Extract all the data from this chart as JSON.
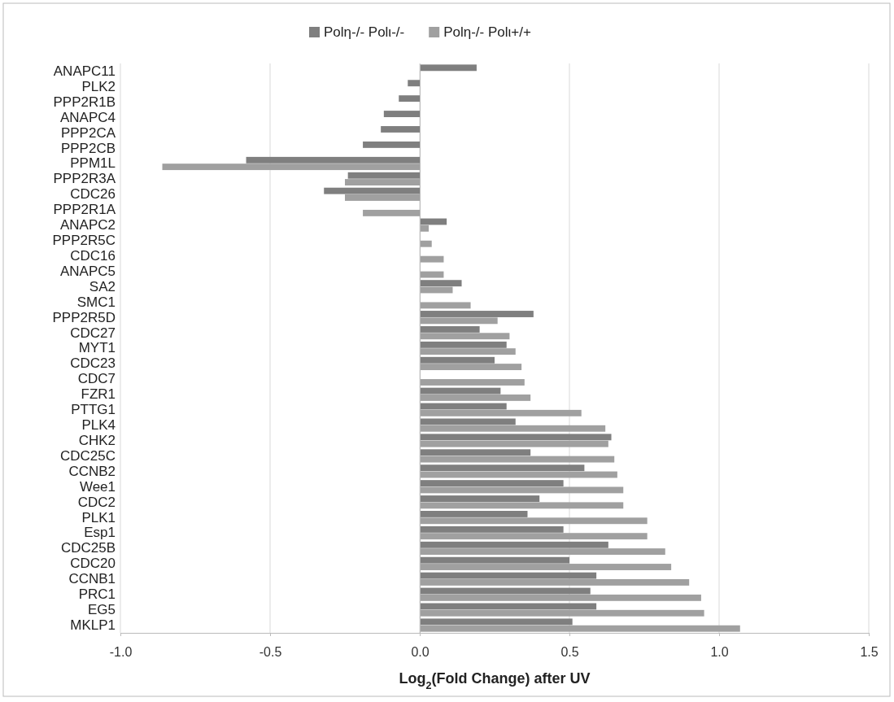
{
  "chart_data": {
    "type": "bar",
    "orientation": "horizontal",
    "xlabel": "Log$_{2}$(Fold Change) after UV",
    "categories": [
      "ANAPC11",
      "PLK2",
      "PPP2R1B",
      "ANAPC4",
      "PPP2CA",
      "PPP2CB",
      "PPM1L",
      "PPP2R3A",
      "CDC26",
      "PPP2R1A",
      "ANAPC2",
      "PPP2R5C",
      "CDC16",
      "ANAPC5",
      "SA2",
      "SMC1",
      "PPP2R5D",
      "CDC27",
      "MYT1",
      "CDC23",
      "CDC7",
      "FZR1",
      "PTTG1",
      "PLK4",
      "CHK2",
      "CDC25C",
      "CCNB2",
      "Wee1",
      "CDC2",
      "PLK1",
      "Esp1",
      "CDC25B",
      "CDC20",
      "CCNB1",
      "PRC1",
      "EG5",
      "MKLP1"
    ],
    "series": [
      {
        "name": "Polη-/- Polι-/-",
        "color": "#7f7f7f",
        "values": [
          0.19,
          -0.04,
          -0.07,
          -0.12,
          -0.13,
          -0.19,
          -0.58,
          -0.24,
          -0.32,
          null,
          0.09,
          null,
          null,
          null,
          0.14,
          null,
          0.38,
          0.2,
          0.29,
          0.25,
          null,
          0.27,
          0.29,
          0.32,
          0.64,
          0.37,
          0.55,
          0.48,
          0.4,
          0.36,
          0.48,
          0.63,
          0.5,
          0.59,
          0.57,
          0.59,
          0.51
        ]
      },
      {
        "name": "Polη-/- Polι+/+",
        "color": "#a0a0a0",
        "values": [
          null,
          null,
          null,
          null,
          null,
          null,
          -0.86,
          -0.25,
          -0.25,
          -0.19,
          0.03,
          0.04,
          0.08,
          0.08,
          0.11,
          0.17,
          0.26,
          0.3,
          0.32,
          0.34,
          0.35,
          0.37,
          0.54,
          0.62,
          0.63,
          0.65,
          0.66,
          0.68,
          0.68,
          0.76,
          0.76,
          0.82,
          0.84,
          0.9,
          0.94,
          0.95,
          1.07
        ]
      }
    ],
    "xlim": [
      -1,
      1.5
    ],
    "xticks": [
      {
        "value": -1,
        "label": "-1.0"
      },
      {
        "value": -0.5,
        "label": "-0.5"
      },
      {
        "value": 0,
        "label": "0.0"
      },
      {
        "value": 0.5,
        "label": "0.5"
      },
      {
        "value": 1,
        "label": "1.0"
      },
      {
        "value": 1.5,
        "label": "1.5"
      }
    ],
    "grid": "x",
    "legend": "top"
  }
}
